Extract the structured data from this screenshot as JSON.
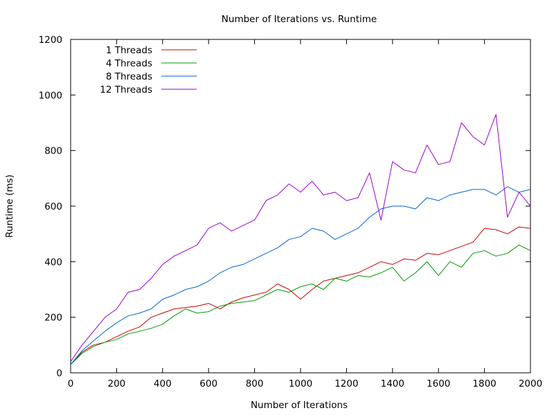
{
  "chart_data": {
    "type": "line",
    "title": "Number of Iterations vs. Runtime",
    "xlabel": "Number of Iterations",
    "ylabel": "Runtime (ms)",
    "xlim": [
      0,
      2000
    ],
    "ylim": [
      0,
      1200
    ],
    "xticks": [
      0,
      200,
      400,
      600,
      800,
      1000,
      1200,
      1400,
      1600,
      1800,
      2000
    ],
    "yticks": [
      0,
      200,
      400,
      600,
      800,
      1000,
      1200
    ],
    "grid": false,
    "legend_position": "top-left",
    "x": [
      0,
      50,
      100,
      150,
      200,
      250,
      300,
      350,
      400,
      450,
      500,
      550,
      600,
      650,
      700,
      750,
      800,
      850,
      900,
      950,
      1000,
      1050,
      1100,
      1150,
      1200,
      1250,
      1300,
      1350,
      1400,
      1450,
      1500,
      1550,
      1600,
      1650,
      1700,
      1750,
      1800,
      1850,
      1900,
      1950,
      2000
    ],
    "series": [
      {
        "name": "1 Threads",
        "color": "#cc0000",
        "values": [
          30,
          75,
          100,
          110,
          130,
          150,
          165,
          200,
          215,
          230,
          235,
          240,
          250,
          230,
          255,
          270,
          280,
          290,
          320,
          300,
          265,
          300,
          330,
          340,
          350,
          360,
          380,
          400,
          390,
          410,
          405,
          430,
          425,
          440,
          455,
          470,
          520,
          515,
          500,
          525,
          520
        ]
      },
      {
        "name": "4 Threads",
        "color": "#009900",
        "values": [
          30,
          70,
          95,
          110,
          120,
          140,
          150,
          160,
          175,
          205,
          230,
          215,
          220,
          240,
          250,
          255,
          260,
          280,
          300,
          290,
          310,
          320,
          300,
          340,
          330,
          350,
          345,
          360,
          380,
          330,
          360,
          400,
          350,
          400,
          380,
          430,
          440,
          420,
          430,
          460,
          440
        ]
      },
      {
        "name": "8 Threads",
        "color": "#0066cc",
        "values": [
          30,
          80,
          115,
          150,
          180,
          205,
          215,
          230,
          265,
          280,
          300,
          310,
          330,
          360,
          380,
          390,
          410,
          430,
          450,
          480,
          490,
          520,
          510,
          480,
          500,
          520,
          560,
          590,
          600,
          600,
          590,
          630,
          620,
          640,
          650,
          660,
          660,
          640,
          670,
          650,
          660
        ]
      },
      {
        "name": "12 Threads",
        "color": "#9900cc",
        "values": [
          40,
          100,
          150,
          200,
          230,
          290,
          300,
          340,
          390,
          420,
          440,
          460,
          520,
          540,
          510,
          530,
          550,
          620,
          640,
          680,
          650,
          690,
          640,
          650,
          620,
          630,
          720,
          550,
          760,
          730,
          720,
          820,
          750,
          760,
          900,
          850,
          820,
          930,
          560,
          650,
          600
        ]
      }
    ]
  }
}
